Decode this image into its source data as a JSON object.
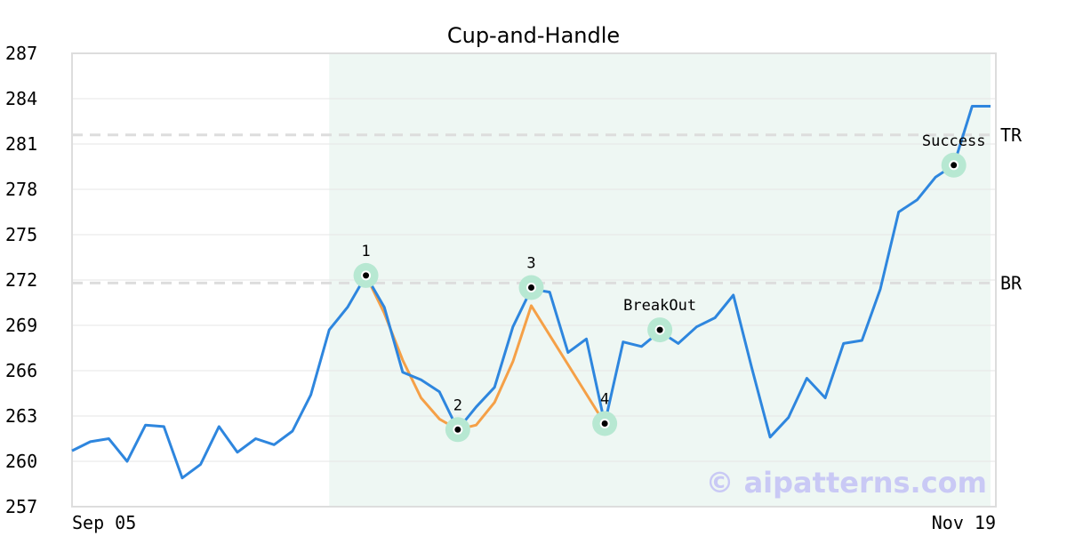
{
  "chart_data": {
    "type": "line",
    "title": "Cup-and-Handle",
    "xlabel": "",
    "ylabel": "",
    "ylim": [
      257,
      287
    ],
    "yticks": [
      "257",
      "260",
      "263",
      "266",
      "269",
      "272",
      "275",
      "278",
      "281",
      "284",
      "287"
    ],
    "xtick_labels": {
      "start": "Sep 05",
      "end": "Nov 19"
    },
    "grid": true,
    "pattern_region": {
      "from_index": 14,
      "to_index": 50
    },
    "series": [
      {
        "role": "price",
        "color": "#2e86de",
        "values": [
          260.7,
          261.3,
          261.5,
          260.0,
          262.4,
          262.3,
          258.9,
          259.8,
          262.3,
          260.6,
          261.5,
          261.1,
          262.0,
          264.4,
          268.7,
          270.2,
          272.3,
          270.2,
          265.9,
          265.4,
          264.6,
          262.1,
          263.6,
          264.9,
          268.9,
          271.4,
          271.2,
          267.2,
          268.1,
          262.5,
          267.9,
          267.6,
          268.6,
          267.8,
          268.9,
          269.5,
          271.0,
          266.2,
          261.6,
          262.9,
          265.5,
          264.2,
          267.8,
          268.0,
          271.4,
          276.5,
          277.3,
          278.8,
          279.6,
          283.5,
          283.5
        ]
      },
      {
        "role": "pattern",
        "color": "#f5a047",
        "points": [
          [
            16,
            272.3
          ],
          [
            17,
            269.8
          ],
          [
            18,
            266.7
          ],
          [
            19,
            264.2
          ],
          [
            20,
            262.8
          ],
          [
            21,
            262.1
          ],
          [
            22,
            262.4
          ],
          [
            23,
            263.9
          ],
          [
            24,
            266.6
          ],
          [
            25,
            270.3
          ],
          [
            29,
            262.5
          ]
        ]
      }
    ],
    "levels": [
      {
        "label": "TR",
        "value": 281.6
      },
      {
        "label": "BR",
        "value": 271.8
      }
    ],
    "annotations": [
      {
        "label": "1",
        "index": 16,
        "value": 272.3,
        "label_pos": "above"
      },
      {
        "label": "2",
        "index": 21,
        "value": 262.1,
        "label_pos": "above"
      },
      {
        "label": "3",
        "index": 25,
        "value": 271.5,
        "label_pos": "above"
      },
      {
        "label": "4",
        "index": 29,
        "value": 262.5,
        "label_pos": "above-inside"
      },
      {
        "label": "BreakOut",
        "index": 32,
        "value": 268.7,
        "label_pos": "above"
      },
      {
        "label": "Success",
        "index": 48,
        "value": 279.6,
        "label_pos": "above"
      }
    ],
    "colors": {
      "region_fill": "#eef7f3",
      "marker_halo": "#b7e8d2",
      "level_line": "#dddddd",
      "grid": "#e6e6e6",
      "frame": "#dddddd"
    }
  },
  "watermark": "© aipatterns.com"
}
